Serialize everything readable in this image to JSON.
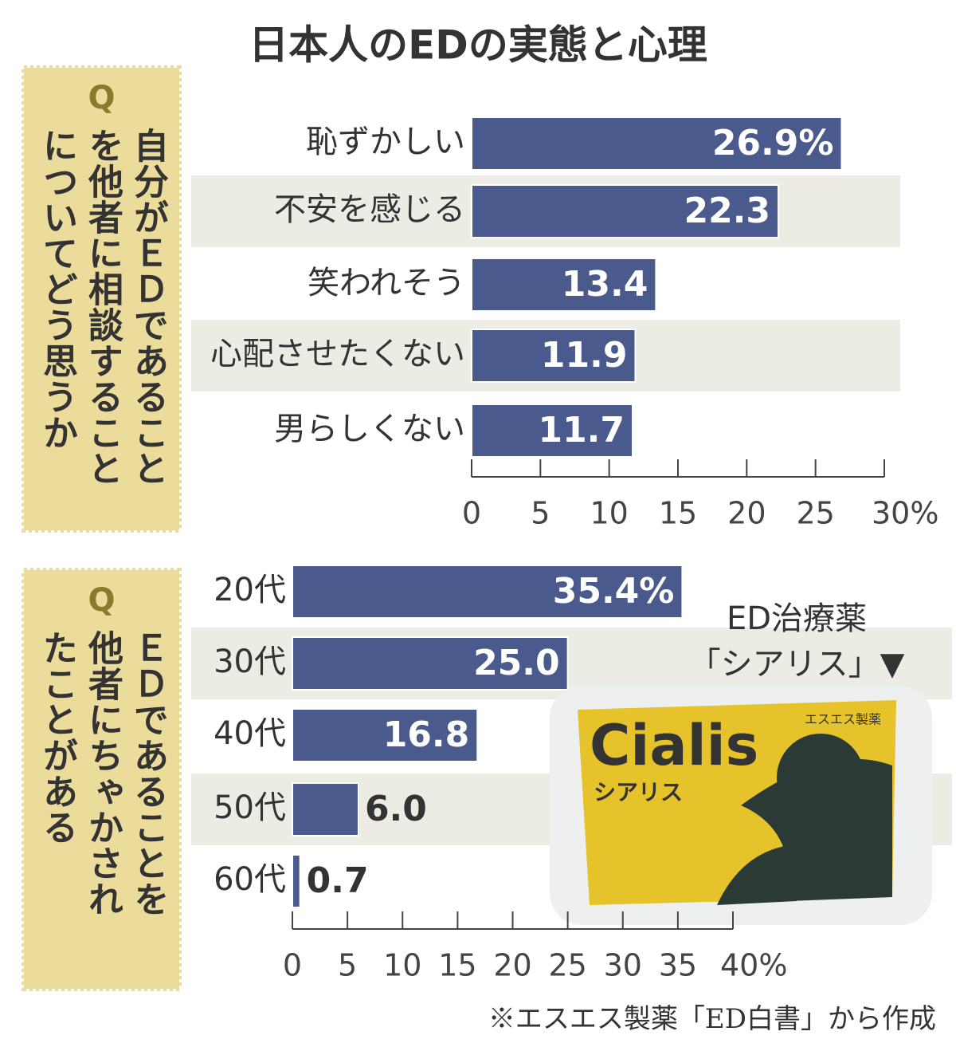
{
  "title": "日本人のEDの実態と心理",
  "chart_data": [
    {
      "type": "bar",
      "orientation": "horizontal",
      "question_mark": "Q",
      "question_lines": [
        "自分がＥＤであること",
        "を他者に相談すること",
        "についてどう思うか"
      ],
      "categories": [
        "恥ずかしい",
        "不安を感じる",
        "笑われそう",
        "心配させたくない",
        "男らしくない"
      ],
      "values": [
        26.9,
        22.3,
        13.4,
        11.9,
        11.7
      ],
      "value_labels": [
        "26.9%",
        "22.3",
        "13.4",
        "11.9",
        "11.7"
      ],
      "color": "#4a5a8c",
      "xlim": [
        0,
        30
      ],
      "xticks": [
        0,
        5,
        10,
        15,
        20,
        25,
        {
          "value": 30,
          "label": "30%"
        }
      ]
    },
    {
      "type": "bar",
      "orientation": "horizontal",
      "question_mark": "Q",
      "question_lines": [
        "ＥＤであることを",
        "他者にちゃかされ",
        "たことがある"
      ],
      "categories": [
        "20代",
        "30代",
        "40代",
        "50代",
        "60代"
      ],
      "values": [
        35.4,
        25.0,
        16.8,
        6.0,
        0.7
      ],
      "value_labels": [
        "35.4%",
        "25.0",
        "16.8",
        "6.0",
        "0.7"
      ],
      "color": "#4a5a8c",
      "xlim": [
        0,
        40
      ],
      "xticks": [
        0,
        5,
        10,
        15,
        20,
        25,
        30,
        35,
        {
          "value": 40,
          "label": "40%"
        }
      ]
    }
  ],
  "photo_caption": [
    "ED治療薬",
    "「シアリス」▼"
  ],
  "photo_texts": {
    "brand": "Cialis",
    "name": "シアリス",
    "maker": "エスエス製薬"
  },
  "source": "※エスエス製薬「ED白書」から作成"
}
